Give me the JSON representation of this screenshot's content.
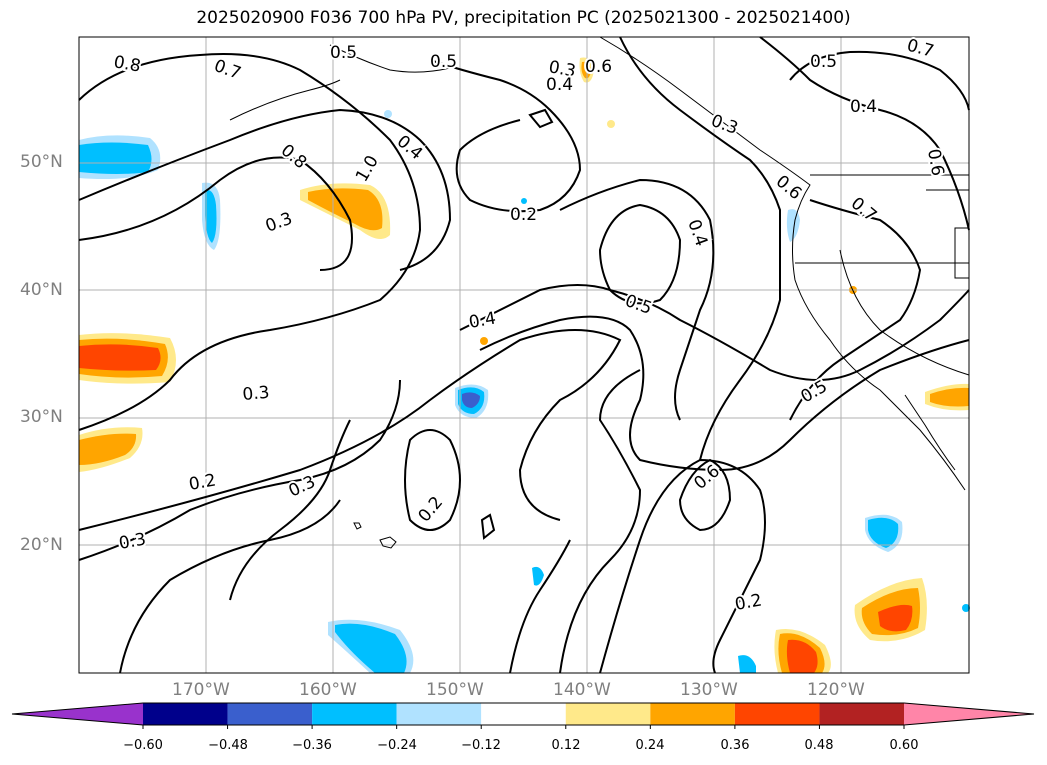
{
  "title": "2025020900 F036 700 hPa PV, precipitation PC (2025021300 - 2025021400)",
  "lat_labels": [
    "50°N",
    "40°N",
    "30°N",
    "20°N"
  ],
  "lon_labels": [
    "170°W",
    "160°W",
    "150°W",
    "140°W",
    "130°W",
    "120°W"
  ],
  "contour_labels": [
    "0.8",
    "0.7",
    "0.5",
    "0.3",
    "0.4",
    "0.5",
    "0.7",
    "0.5",
    "0.4",
    "0.6",
    "0.3",
    "0.8",
    "0.4",
    "0.2",
    "0.7",
    "0.6",
    "0.3",
    "0.6",
    "1.0",
    "0.4",
    "0.5",
    "0.4",
    "0.3",
    "0.5",
    "0.2",
    "0.3",
    "0.2",
    "0.6",
    "0.2",
    "0.3"
  ],
  "colorbar": {
    "ticks": [
      "−0.60",
      "−0.48",
      "−0.36",
      "−0.24",
      "−0.12",
      "0.12",
      "0.24",
      "0.36",
      "0.48",
      "0.60"
    ],
    "colors": [
      "#9932cc",
      "#00008b",
      "#3a5fcd",
      "#00bfff",
      "#b0e2ff",
      "#ffffff",
      "#ffe98a",
      "#ffa500",
      "#ff4500",
      "#b22222",
      "#ff85a8"
    ]
  },
  "colors": {
    "land_outline": "#000000",
    "grid": "#b0b0b0",
    "contour": "#000000"
  }
}
